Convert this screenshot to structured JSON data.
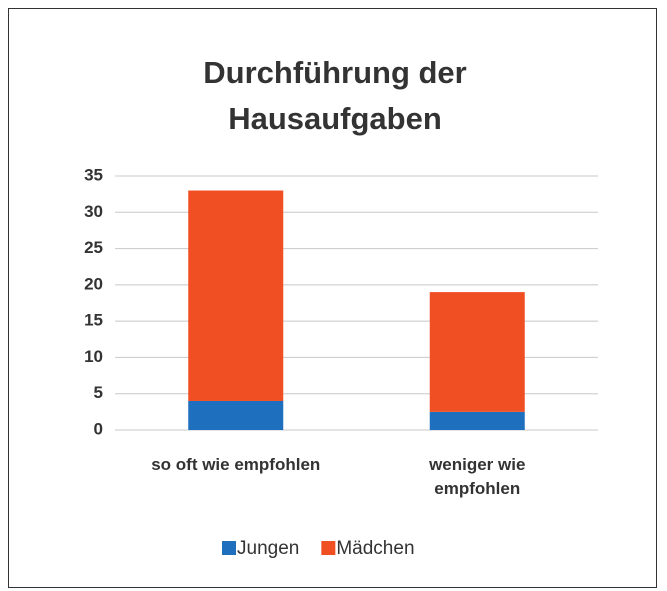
{
  "chart_data": {
    "type": "stacked_bar",
    "title": "Durchführung der Hausaufgaben",
    "categories": [
      "so oft wie empfohlen",
      "weniger wie empfohlen"
    ],
    "series": [
      {
        "name": "Jungen",
        "color": "#1f6fbf",
        "values": [
          4,
          2.5
        ]
      },
      {
        "name": "Mädchen",
        "color": "#f04e23",
        "values": [
          29,
          16.5
        ]
      }
    ],
    "ylim": [
      0,
      35
    ],
    "yticks": [
      0,
      5,
      10,
      15,
      20,
      25,
      30,
      35
    ],
    "grid": true,
    "legend": "bottom"
  }
}
